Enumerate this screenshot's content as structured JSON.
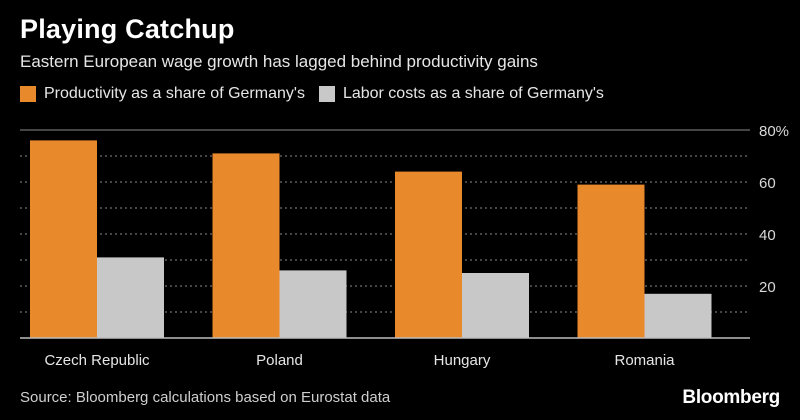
{
  "header": {
    "title": "Playing Catchup",
    "subtitle": "Eastern European wage growth has lagged behind productivity gains"
  },
  "colors": {
    "productivity": "#e8892b",
    "labor": "#c8c8c8",
    "grid": "#8a8a8a",
    "axis_text": "#d9d9d9"
  },
  "chart_data": {
    "type": "bar",
    "categories": [
      "Czech Republic",
      "Poland",
      "Hungary",
      "Romania"
    ],
    "series": [
      {
        "name": "Productivity as a share of Germany's",
        "values": [
          76,
          71,
          64,
          59
        ]
      },
      {
        "name": "Labor costs as a share of Germany's",
        "values": [
          31,
          26,
          25,
          17
        ]
      }
    ],
    "ylim": [
      0,
      80
    ],
    "yticks": [
      20,
      40,
      60,
      80
    ],
    "ytick_labels": [
      "20",
      "40",
      "60",
      "80%"
    ],
    "grid": true,
    "legend_position": "top-left"
  },
  "footer": {
    "source": "Source: Bloomberg calculations based on Eurostat data",
    "brand": "Bloomberg"
  }
}
